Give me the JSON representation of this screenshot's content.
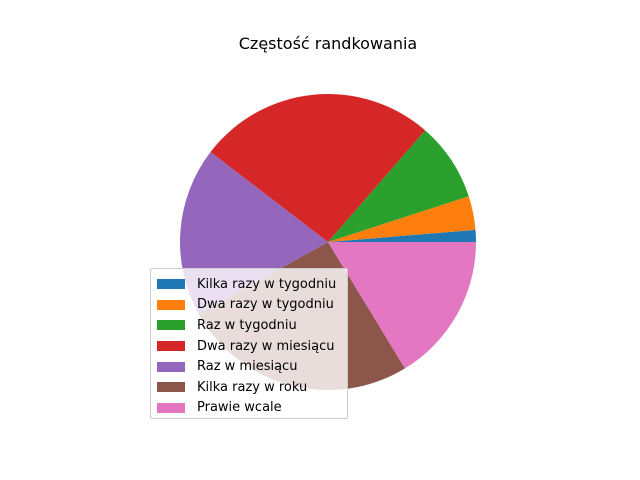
{
  "chart_data": {
    "type": "pie",
    "title": "Częstość randkowania",
    "categories": [
      "Kilka razy w tygodniu",
      "Dwa razy w tygodniu",
      "Raz w tygodniu",
      "Dwa razy w miesiącu",
      "Raz w miesiącu",
      "Kilka razy w roku",
      "Prawie wcale"
    ],
    "values": [
      1.3,
      3.7,
      8.6,
      26.0,
      18.5,
      25.6,
      16.3
    ],
    "unit": "%",
    "colors": [
      "#1f77b4",
      "#ff7f0e",
      "#2ca02c",
      "#d62728",
      "#9467bd",
      "#8c564b",
      "#e377c2"
    ],
    "start_angle_deg": 0,
    "direction": "counterclockwise",
    "legend": {
      "position": "lower-left"
    }
  }
}
